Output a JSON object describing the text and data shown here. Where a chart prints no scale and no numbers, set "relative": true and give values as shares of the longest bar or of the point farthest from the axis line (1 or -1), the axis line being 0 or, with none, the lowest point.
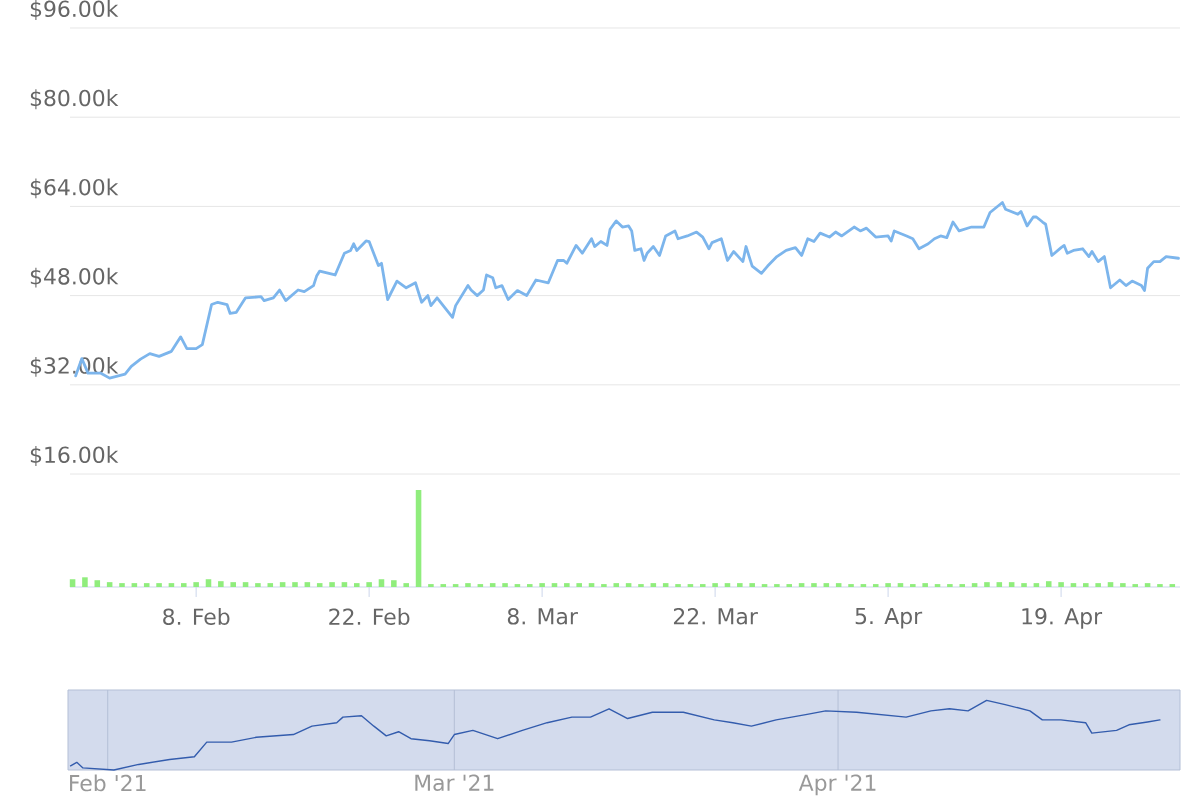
{
  "chart_data": [
    {
      "type": "line",
      "color": "#7cb5ec",
      "marker": "none",
      "grid": "y",
      "tick_labels": "y",
      "xlim": [
        "2021-01-28T19:00",
        "2021-04-28T15:00"
      ],
      "ylim": [
        16000,
        96000
      ],
      "yticks": [
        {
          "value": 16000,
          "label": "$16.00k"
        },
        {
          "value": 32000,
          "label": "$32.00k"
        },
        {
          "value": 48000,
          "label": "$48.00k"
        },
        {
          "value": 64000,
          "label": "$64.00k"
        },
        {
          "value": 80000,
          "label": "$80.00k"
        },
        {
          "value": 96000,
          "label": "$96.00k"
        }
      ],
      "x": [
        "2021-01-29T06:00",
        "2021-01-29T18:00",
        "2021-01-30T06:00",
        "2021-01-31T06:00",
        "2021-02-01T00:00",
        "2021-02-02T06:00",
        "2021-02-02T18:00",
        "2021-02-03T12:00",
        "2021-02-04T06:00",
        "2021-02-05T00:00",
        "2021-02-06T00:00",
        "2021-02-06T18:00",
        "2021-02-07T06:00",
        "2021-02-08T00:00",
        "2021-02-08T12:00",
        "2021-02-09T06:00",
        "2021-02-09T18:00",
        "2021-02-10T12:00",
        "2021-02-10T18:00",
        "2021-02-11T06:00",
        "2021-02-12T00:00",
        "2021-02-13T06:00",
        "2021-02-13T12:00",
        "2021-02-14T06:00",
        "2021-02-14T18:00",
        "2021-02-15T06:00",
        "2021-02-16T06:00",
        "2021-02-16T18:00",
        "2021-02-17T12:00",
        "2021-02-17T18:00",
        "2021-02-18T00:00",
        "2021-02-19T06:00",
        "2021-02-20T00:00",
        "2021-02-20T12:00",
        "2021-02-20T18:00",
        "2021-02-21T00:00",
        "2021-02-21T18:00",
        "2021-02-22T00:00",
        "2021-02-22T18:00",
        "2021-02-23T00:00",
        "2021-02-23T12:00",
        "2021-02-24T06:00",
        "2021-02-25T00:00",
        "2021-02-25T18:00",
        "2021-02-26T06:00",
        "2021-02-26T18:00",
        "2021-02-27T00:00",
        "2021-02-27T12:00",
        "2021-02-28T06:00",
        "2021-02-28T18:00",
        "2021-03-01T00:00",
        "2021-03-02T00:00",
        "2021-03-02T06:00",
        "2021-03-02T18:00",
        "2021-03-03T06:00",
        "2021-03-03T12:00",
        "2021-03-04T00:00",
        "2021-03-04T06:00",
        "2021-03-04T18:00",
        "2021-03-05T06:00",
        "2021-03-06T00:00",
        "2021-03-06T18:00",
        "2021-03-07T12:00",
        "2021-03-08T12:00",
        "2021-03-09T06:00",
        "2021-03-09T18:00",
        "2021-03-10T00:00",
        "2021-03-10T18:00",
        "2021-03-11T06:00",
        "2021-03-12T00:00",
        "2021-03-12T06:00",
        "2021-03-12T18:00",
        "2021-03-13T06:00",
        "2021-03-13T12:00",
        "2021-03-14T00:00",
        "2021-03-14T12:00",
        "2021-03-15T00:00",
        "2021-03-15T06:00",
        "2021-03-15T12:00",
        "2021-03-16T00:00",
        "2021-03-16T06:00",
        "2021-03-16T12:00",
        "2021-03-17T00:00",
        "2021-03-17T12:00",
        "2021-03-18T00:00",
        "2021-03-18T18:00",
        "2021-03-19T00:00",
        "2021-03-19T18:00",
        "2021-03-20T12:00",
        "2021-03-21T00:00",
        "2021-03-21T12:00",
        "2021-03-21T18:00",
        "2021-03-22T12:00",
        "2021-03-23T00:00",
        "2021-03-23T12:00",
        "2021-03-24T06:00",
        "2021-03-24T12:00",
        "2021-03-25T00:00",
        "2021-03-25T18:00",
        "2021-03-26T06:00",
        "2021-03-27T00:00",
        "2021-03-27T18:00",
        "2021-03-28T12:00",
        "2021-03-29T00:00",
        "2021-03-29T12:00",
        "2021-03-30T00:00",
        "2021-03-30T12:00",
        "2021-03-31T06:00",
        "2021-03-31T18:00",
        "2021-04-01T06:00",
        "2021-04-02T06:00",
        "2021-04-02T18:00",
        "2021-04-03T06:00",
        "2021-04-04T00:00",
        "2021-04-05T00:00",
        "2021-04-05T06:00",
        "2021-04-05T12:00",
        "2021-04-06T12:00",
        "2021-04-07T00:00",
        "2021-04-07T12:00",
        "2021-04-08T06:00",
        "2021-04-08T18:00",
        "2021-04-09T06:00",
        "2021-04-09T18:00",
        "2021-04-10T06:00",
        "2021-04-10T18:00",
        "2021-04-11T18:00",
        "2021-04-12T18:00",
        "2021-04-13T06:00",
        "2021-04-14T06:00",
        "2021-04-14T12:00",
        "2021-04-15T12:00",
        "2021-04-15T18:00",
        "2021-04-16T06:00",
        "2021-04-16T18:00",
        "2021-04-17T00:00",
        "2021-04-17T12:00",
        "2021-04-17T18:00",
        "2021-04-18T06:00",
        "2021-04-19T00:00",
        "2021-04-19T06:00",
        "2021-04-19T12:00",
        "2021-04-20T00:00",
        "2021-04-20T18:00",
        "2021-04-21T06:00",
        "2021-04-21T12:00",
        "2021-04-22T00:00",
        "2021-04-22T12:00",
        "2021-04-23T00:00",
        "2021-04-23T18:00",
        "2021-04-24T06:00",
        "2021-04-24T18:00",
        "2021-04-25T12:00",
        "2021-04-25T18:00",
        "2021-04-26T00:00",
        "2021-04-26T12:00",
        "2021-04-27T00:00",
        "2021-04-27T12:00",
        "2021-04-28T12:00"
      ],
      "values": [
        33600,
        36700,
        34100,
        34100,
        33200,
        33900,
        35300,
        36600,
        37600,
        37100,
        38000,
        40600,
        38500,
        38500,
        39200,
        46400,
        46800,
        46400,
        44800,
        45000,
        47600,
        47800,
        47100,
        47600,
        49000,
        47100,
        49000,
        48700,
        49800,
        51500,
        52400,
        51700,
        55600,
        56100,
        57300,
        56100,
        57800,
        57700,
        53400,
        53800,
        47300,
        50600,
        49400,
        50300,
        46800,
        48000,
        46200,
        47600,
        45500,
        44100,
        46200,
        49800,
        49000,
        48000,
        49000,
        51700,
        51200,
        49400,
        49800,
        47300,
        48900,
        48000,
        50800,
        50300,
        54300,
        54300,
        53800,
        57000,
        55600,
        58200,
        56800,
        57700,
        57000,
        59900,
        61400,
        60300,
        60500,
        59600,
        56100,
        56400,
        54300,
        55600,
        56800,
        55200,
        58700,
        59600,
        58200,
        58700,
        59400,
        58500,
        56400,
        57500,
        58200,
        54300,
        55900,
        54100,
        56800,
        53300,
        52000,
        53300,
        55000,
        56100,
        56600,
        55200,
        58200,
        57700,
        59200,
        58500,
        59400,
        58700,
        60300,
        59600,
        60100,
        58500,
        58700,
        57800,
        59600,
        58700,
        58200,
        56400,
        57300,
        58200,
        58700,
        58400,
        61200,
        59600,
        60300,
        60300,
        62900,
        64700,
        63500,
        62600,
        63100,
        60500,
        62100,
        62100,
        61200,
        60800,
        55200,
        56600,
        57000,
        55600,
        56100,
        56400,
        55000,
        55900,
        54100,
        55000,
        49400,
        50800,
        49800,
        50600,
        49800,
        48900,
        52900,
        54100,
        54100,
        55000,
        54700
      ]
    },
    {
      "type": "bar",
      "relative": true,
      "color": "#90ed7d",
      "tick_labels": "x",
      "xlim": [
        "2021-01-28T19:00",
        "2021-04-28T15:00"
      ],
      "xticks": [
        {
          "value": "2021-02-08",
          "label": "8. Feb"
        },
        {
          "value": "2021-02-22",
          "label": "22. Feb"
        },
        {
          "value": "2021-03-08",
          "label": "8. Mar"
        },
        {
          "value": "2021-03-22",
          "label": "22. Mar"
        },
        {
          "value": "2021-04-05",
          "label": "5. Apr"
        },
        {
          "value": "2021-04-19",
          "label": "19. Apr"
        }
      ],
      "x": [
        "2021-01-29",
        "2021-01-30",
        "2021-01-31",
        "2021-02-01",
        "2021-02-02",
        "2021-02-03",
        "2021-02-04",
        "2021-02-05",
        "2021-02-06",
        "2021-02-07",
        "2021-02-08",
        "2021-02-09",
        "2021-02-10",
        "2021-02-11",
        "2021-02-12",
        "2021-02-13",
        "2021-02-14",
        "2021-02-15",
        "2021-02-16",
        "2021-02-17",
        "2021-02-18",
        "2021-02-19",
        "2021-02-20",
        "2021-02-21",
        "2021-02-22",
        "2021-02-23",
        "2021-02-24",
        "2021-02-25",
        "2021-02-26",
        "2021-02-27",
        "2021-02-28",
        "2021-03-01",
        "2021-03-02",
        "2021-03-03",
        "2021-03-04",
        "2021-03-05",
        "2021-03-06",
        "2021-03-07",
        "2021-03-08",
        "2021-03-09",
        "2021-03-10",
        "2021-03-11",
        "2021-03-12",
        "2021-03-13",
        "2021-03-14",
        "2021-03-15",
        "2021-03-16",
        "2021-03-17",
        "2021-03-18",
        "2021-03-19",
        "2021-03-20",
        "2021-03-21",
        "2021-03-22",
        "2021-03-23",
        "2021-03-24",
        "2021-03-25",
        "2021-03-26",
        "2021-03-27",
        "2021-03-28",
        "2021-03-29",
        "2021-03-30",
        "2021-03-31",
        "2021-04-01",
        "2021-04-02",
        "2021-04-03",
        "2021-04-04",
        "2021-04-05",
        "2021-04-06",
        "2021-04-07",
        "2021-04-08",
        "2021-04-09",
        "2021-04-10",
        "2021-04-11",
        "2021-04-12",
        "2021-04-13",
        "2021-04-14",
        "2021-04-15",
        "2021-04-16",
        "2021-04-17",
        "2021-04-18",
        "2021-04-19",
        "2021-04-20",
        "2021-04-21",
        "2021-04-22",
        "2021-04-23",
        "2021-04-24",
        "2021-04-25",
        "2021-04-26",
        "2021-04-27",
        "2021-04-28"
      ],
      "values": [
        0.08,
        0.1,
        0.07,
        0.05,
        0.04,
        0.04,
        0.04,
        0.04,
        0.04,
        0.04,
        0.05,
        0.08,
        0.06,
        0.05,
        0.05,
        0.04,
        0.04,
        0.05,
        0.05,
        0.05,
        0.04,
        0.05,
        0.05,
        0.04,
        0.05,
        0.08,
        0.07,
        0.04,
        1,
        0.03,
        0.03,
        0.03,
        0.04,
        0.03,
        0.04,
        0.04,
        0.03,
        0.03,
        0.04,
        0.04,
        0.04,
        0.04,
        0.04,
        0.03,
        0.04,
        0.04,
        0.03,
        0.04,
        0.04,
        0.03,
        0.03,
        0.03,
        0.04,
        0.04,
        0.04,
        0.04,
        0.03,
        0.03,
        0.03,
        0.04,
        0.04,
        0.04,
        0.04,
        0.03,
        0.03,
        0.03,
        0.04,
        0.04,
        0.03,
        0.04,
        0.03,
        0.03,
        0.03,
        0.04,
        0.05,
        0.05,
        0.05,
        0.04,
        0.04,
        0.06,
        0.05,
        0.04,
        0.04,
        0.04,
        0.05,
        0.04,
        0.03,
        0.04,
        0.03,
        0.03
      ]
    },
    {
      "type": "line",
      "relative": true,
      "color": "#335cad",
      "marker": "none",
      "grid": "x",
      "tick_labels": "x",
      "xlim": [
        "2021-01-28T19:00",
        "2021-04-28T15:00"
      ],
      "xticks": [
        {
          "value": "2021-02-01",
          "label": "Feb '21"
        },
        {
          "value": "2021-03-01",
          "label": "Mar '21"
        },
        {
          "value": "2021-04-01",
          "label": "Apr '21"
        }
      ],
      "x": [
        "2021-01-29",
        "2021-01-29T12:00",
        "2021-01-30",
        "2021-02-01T12:00",
        "2021-02-03T12:00",
        "2021-02-06",
        "2021-02-08",
        "2021-02-09",
        "2021-02-11",
        "2021-02-13",
        "2021-02-14T12:00",
        "2021-02-16",
        "2021-02-17T12:00",
        "2021-02-19T12:00",
        "2021-02-20",
        "2021-02-21T12:00",
        "2021-02-22T12:00",
        "2021-02-23T12:00",
        "2021-02-24T12:00",
        "2021-02-25T12:00",
        "2021-02-27",
        "2021-02-28T12:00",
        "2021-03-01",
        "2021-03-02T12:00",
        "2021-03-04T12:00",
        "2021-03-06T12:00",
        "2021-03-08T12:00",
        "2021-03-10T12:00",
        "2021-03-12",
        "2021-03-13T12:00",
        "2021-03-15",
        "2021-03-17",
        "2021-03-19T12:00",
        "2021-03-22",
        "2021-03-23T12:00",
        "2021-03-25",
        "2021-03-27",
        "2021-03-29T12:00",
        "2021-03-31",
        "2021-04-02T12:00",
        "2021-04-06T12:00",
        "2021-04-08T12:00",
        "2021-04-10",
        "2021-04-11T12:00",
        "2021-04-13",
        "2021-04-14T12:00",
        "2021-04-16T12:00",
        "2021-04-17T12:00",
        "2021-04-19",
        "2021-04-21",
        "2021-04-21T12:00",
        "2021-04-23T12:00",
        "2021-04-24T12:00",
        "2021-04-26",
        "2021-04-27"
      ],
      "values": [
        0.06,
        0.11,
        0.03,
        0,
        0.08,
        0.15,
        0.19,
        0.4,
        0.4,
        0.47,
        0.49,
        0.51,
        0.63,
        0.68,
        0.76,
        0.78,
        0.63,
        0.49,
        0.55,
        0.45,
        0.42,
        0.38,
        0.51,
        0.57,
        0.45,
        0.57,
        0.68,
        0.76,
        0.76,
        0.88,
        0.74,
        0.83,
        0.83,
        0.72,
        0.68,
        0.63,
        0.72,
        0.8,
        0.85,
        0.83,
        0.76,
        0.85,
        0.88,
        0.85,
        1,
        0.94,
        0.85,
        0.72,
        0.72,
        0.68,
        0.53,
        0.57,
        0.65,
        0.69,
        0.72
      ]
    }
  ]
}
